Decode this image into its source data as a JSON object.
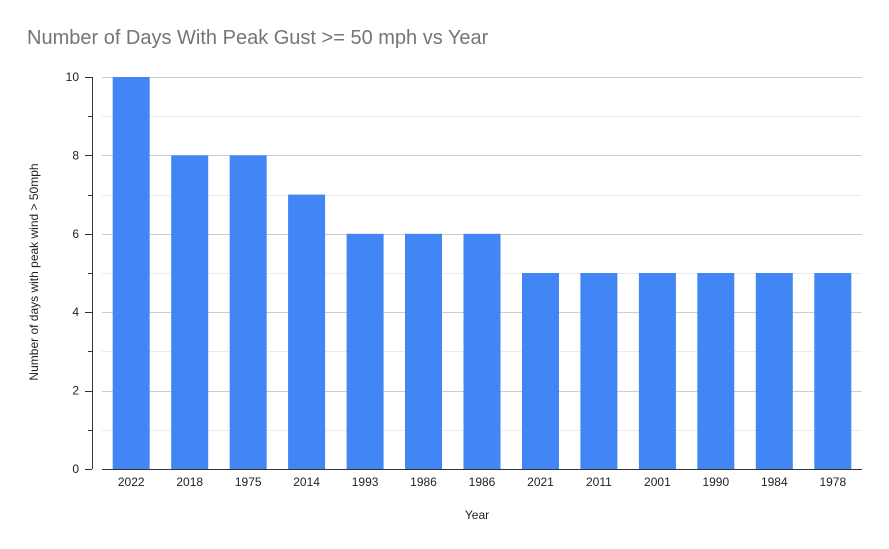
{
  "chart_data": {
    "type": "bar",
    "title": "Number of Days With Peak Gust >= 50 mph vs Year",
    "xlabel": "Year",
    "ylabel": "Number of days with peak wind > 50mph",
    "categories": [
      "2022",
      "2018",
      "1975",
      "2014",
      "1993",
      "1986",
      "1986",
      "2021",
      "2011",
      "2001",
      "1990",
      "1984",
      "1978"
    ],
    "series": [
      {
        "values": [
          10,
          8,
          8,
          7,
          6,
          6,
          6,
          5,
          5,
          5,
          5,
          5,
          5
        ],
        "color": "#4285f4"
      }
    ],
    "ylim": [
      0,
      10
    ],
    "yticks": [
      "0",
      "2",
      "4",
      "6",
      "8",
      "10"
    ],
    "ytick_values": [
      0,
      2,
      4,
      6,
      8,
      10
    ],
    "grid": true,
    "legend": "none"
  }
}
